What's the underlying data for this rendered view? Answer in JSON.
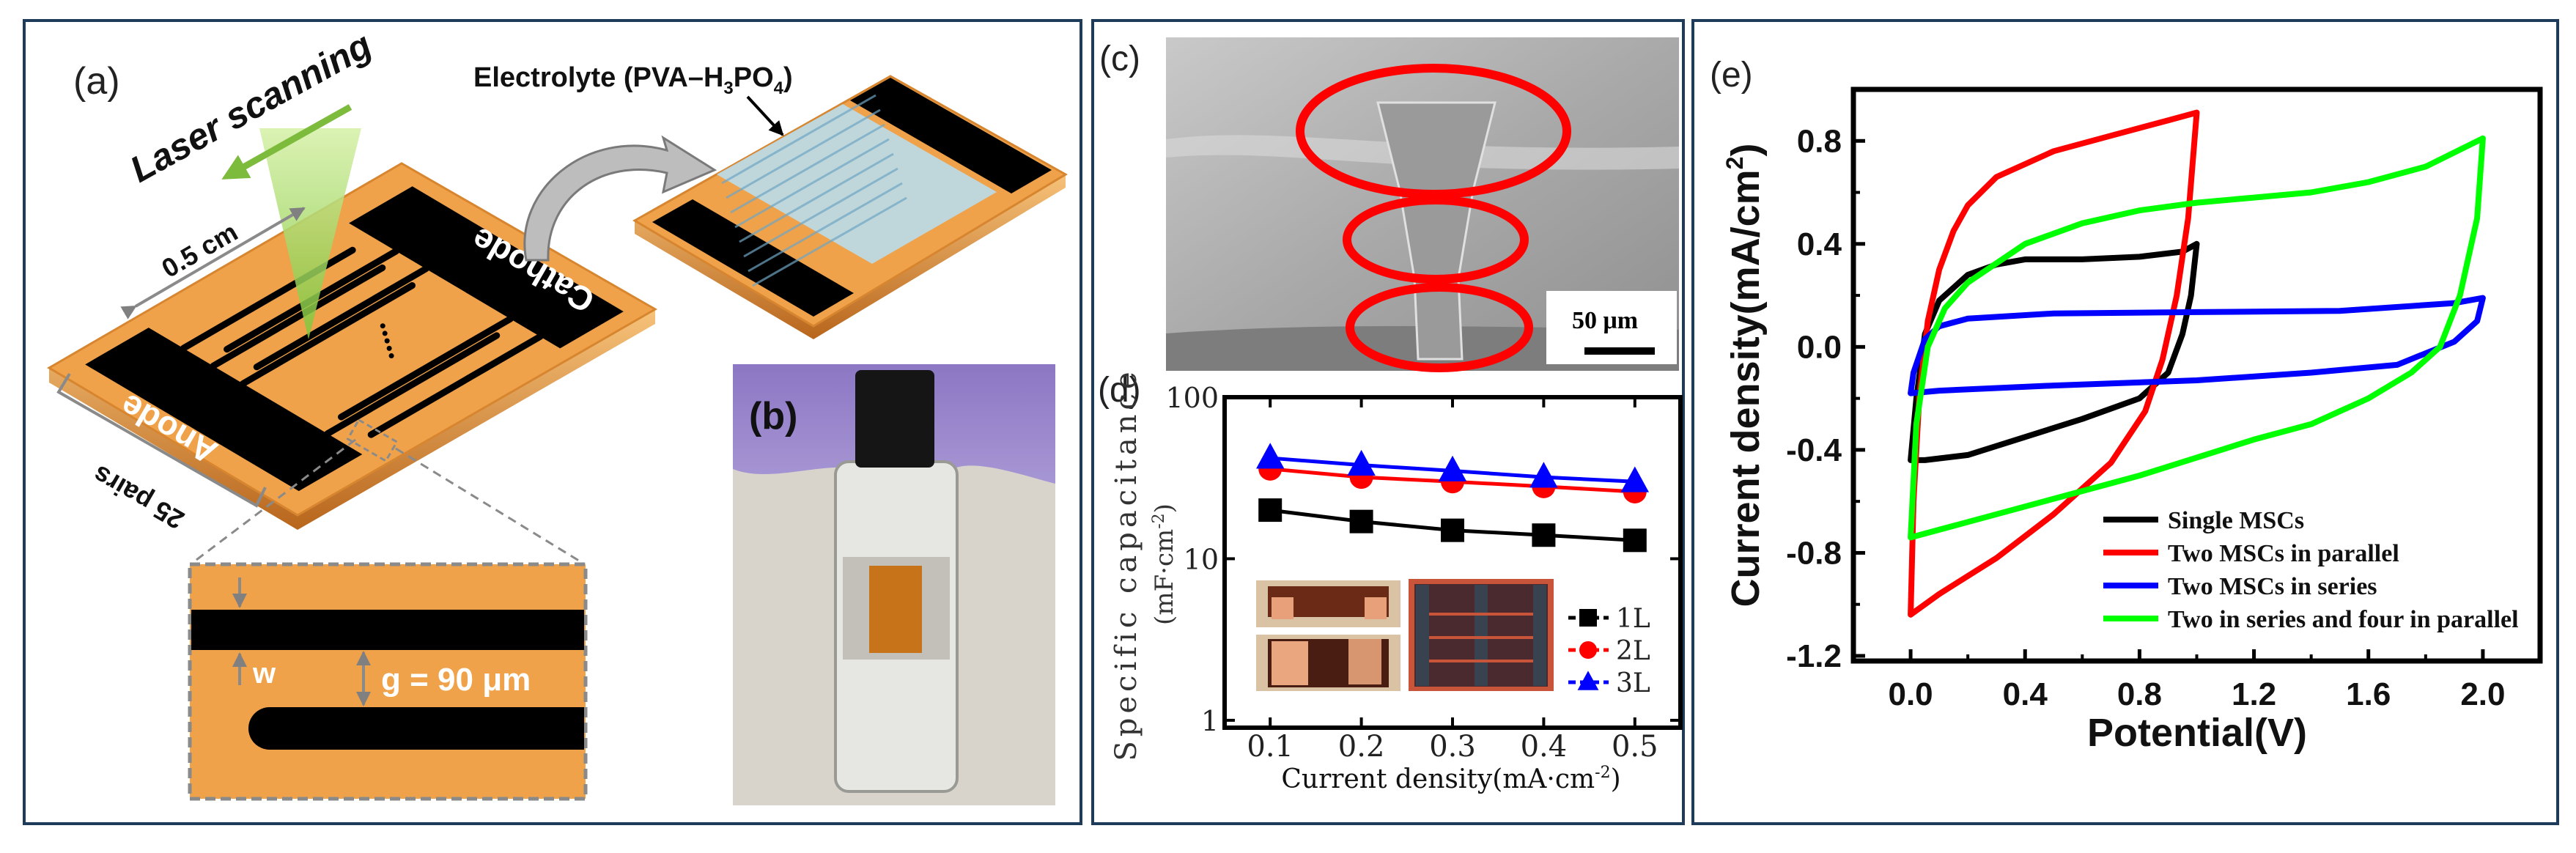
{
  "panel_a": {
    "label": "(a)",
    "laser_label": "Laser scanning",
    "electrolyte_label": "Electrolyte (PVA–H",
    "electrolyte_sub1": "3",
    "electrolyte_mid": "PO",
    "electrolyte_sub2": "4",
    "electrolyte_end": ")",
    "cathode_label": "Cathode",
    "anode_label": "Anode",
    "width_label": "0.5 cm",
    "pairs_label": "25 pairs",
    "w_label": "w",
    "gap_label": "g = 90 μm",
    "colors": {
      "substrate": "#f0a24a",
      "electrode": "#000000",
      "laser": "#9fd45a",
      "electrolyte": "#b9dcea"
    }
  },
  "panel_b": {
    "label": "(b)"
  },
  "panel_c": {
    "label": "(c)",
    "scale_bar": "50 μm",
    "highlight_color": "#ff0000"
  },
  "panel_d": {
    "label": "(d)"
  },
  "panel_e": {
    "label": "(e)"
  },
  "chart_data": [
    {
      "panel": "d",
      "type": "line",
      "xlabel": "Current density(mA·cm",
      "xlabel_sup": "-2",
      "xlabel_end": ")",
      "ylabel": "Specific capacitance",
      "ylabel_unit": "(mF·cm",
      "ylabel_unit_sup": "-2",
      "ylabel_unit_end": ")",
      "x": [
        0.1,
        0.2,
        0.3,
        0.4,
        0.5
      ],
      "xticks": [
        "0.1",
        "0.2",
        "0.3",
        "0.4",
        "0.5"
      ],
      "yscale": "log",
      "yticks": [
        1,
        10,
        100
      ],
      "ytick_labels": [
        "1",
        "10",
        "100"
      ],
      "xlim": [
        0.05,
        0.55
      ],
      "ylim": [
        0.9,
        100
      ],
      "legend": "right-middle",
      "series": [
        {
          "name": "1L",
          "marker": "square",
          "color": "#000000",
          "values": [
            20,
            17,
            15,
            14,
            13
          ]
        },
        {
          "name": "2L",
          "marker": "circle",
          "color": "#ff0000",
          "values": [
            36,
            32,
            30,
            28,
            26
          ]
        },
        {
          "name": "3L",
          "marker": "triangle",
          "color": "#0000ff",
          "values": [
            42,
            38,
            35,
            32,
            30
          ]
        }
      ]
    },
    {
      "panel": "e",
      "type": "line",
      "xlabel": "Potential(V)",
      "ylabel": "Current density(mA/cm",
      "ylabel_sup": "2",
      "ylabel_end": ")",
      "xlim": [
        -0.2,
        2.2
      ],
      "ylim": [
        -1.22,
        1.0
      ],
      "xticks": [
        "0.0",
        "0.4",
        "0.8",
        "1.2",
        "1.6",
        "2.0"
      ],
      "yticks": [
        "-1.2",
        "-0.8",
        "-0.4",
        "0.0",
        "0.4",
        "0.8"
      ],
      "legend": "bottom-right",
      "series": [
        {
          "name": "Single MSCs",
          "color": "#000000",
          "points": [
            [
              0,
              -0.44
            ],
            [
              0.02,
              -0.2
            ],
            [
              0.05,
              0.05
            ],
            [
              0.1,
              0.18
            ],
            [
              0.2,
              0.28
            ],
            [
              0.3,
              0.32
            ],
            [
              0.4,
              0.34
            ],
            [
              0.6,
              0.34
            ],
            [
              0.8,
              0.35
            ],
            [
              0.95,
              0.37
            ],
            [
              1.0,
              0.4
            ],
            [
              0.98,
              0.2
            ],
            [
              0.95,
              0.05
            ],
            [
              0.9,
              -0.1
            ],
            [
              0.8,
              -0.2
            ],
            [
              0.6,
              -0.28
            ],
            [
              0.4,
              -0.35
            ],
            [
              0.2,
              -0.42
            ],
            [
              0.05,
              -0.44
            ],
            [
              0,
              -0.44
            ]
          ]
        },
        {
          "name": "Two MSCs in parallel",
          "color": "#ff0000",
          "points": [
            [
              0,
              -1.04
            ],
            [
              0.01,
              -0.6
            ],
            [
              0.03,
              -0.2
            ],
            [
              0.06,
              0.1
            ],
            [
              0.1,
              0.3
            ],
            [
              0.15,
              0.45
            ],
            [
              0.2,
              0.55
            ],
            [
              0.3,
              0.66
            ],
            [
              0.5,
              0.76
            ],
            [
              0.7,
              0.82
            ],
            [
              0.9,
              0.88
            ],
            [
              1.0,
              0.91
            ],
            [
              0.97,
              0.5
            ],
            [
              0.93,
              0.2
            ],
            [
              0.88,
              -0.05
            ],
            [
              0.82,
              -0.25
            ],
            [
              0.7,
              -0.45
            ],
            [
              0.5,
              -0.65
            ],
            [
              0.3,
              -0.82
            ],
            [
              0.1,
              -0.96
            ],
            [
              0,
              -1.04
            ]
          ]
        },
        {
          "name": "Two MSCs in series",
          "color": "#0000ff",
          "points": [
            [
              0,
              -0.18
            ],
            [
              0.01,
              -0.1
            ],
            [
              0.05,
              0.03
            ],
            [
              0.1,
              0.08
            ],
            [
              0.2,
              0.11
            ],
            [
              0.5,
              0.13
            ],
            [
              1.0,
              0.135
            ],
            [
              1.5,
              0.14
            ],
            [
              1.9,
              0.17
            ],
            [
              2.0,
              0.19
            ],
            [
              1.98,
              0.1
            ],
            [
              1.9,
              0.02
            ],
            [
              1.7,
              -0.07
            ],
            [
              1.4,
              -0.1
            ],
            [
              1.0,
              -0.13
            ],
            [
              0.5,
              -0.15
            ],
            [
              0.1,
              -0.17
            ],
            [
              0,
              -0.18
            ]
          ]
        },
        {
          "name": "Two in series and four in parallel",
          "color": "#00ff00",
          "points": [
            [
              0,
              -0.74
            ],
            [
              0.02,
              -0.3
            ],
            [
              0.06,
              0.0
            ],
            [
              0.12,
              0.15
            ],
            [
              0.2,
              0.25
            ],
            [
              0.4,
              0.4
            ],
            [
              0.6,
              0.48
            ],
            [
              0.8,
              0.53
            ],
            [
              1.0,
              0.56
            ],
            [
              1.2,
              0.58
            ],
            [
              1.4,
              0.6
            ],
            [
              1.6,
              0.64
            ],
            [
              1.8,
              0.7
            ],
            [
              2.0,
              0.81
            ],
            [
              1.98,
              0.5
            ],
            [
              1.92,
              0.2
            ],
            [
              1.85,
              0.0
            ],
            [
              1.75,
              -0.1
            ],
            [
              1.6,
              -0.2
            ],
            [
              1.4,
              -0.3
            ],
            [
              1.2,
              -0.36
            ],
            [
              1.0,
              -0.43
            ],
            [
              0.8,
              -0.5
            ],
            [
              0.6,
              -0.56
            ],
            [
              0.4,
              -0.62
            ],
            [
              0.2,
              -0.68
            ],
            [
              0,
              -0.74
            ]
          ]
        }
      ]
    }
  ]
}
